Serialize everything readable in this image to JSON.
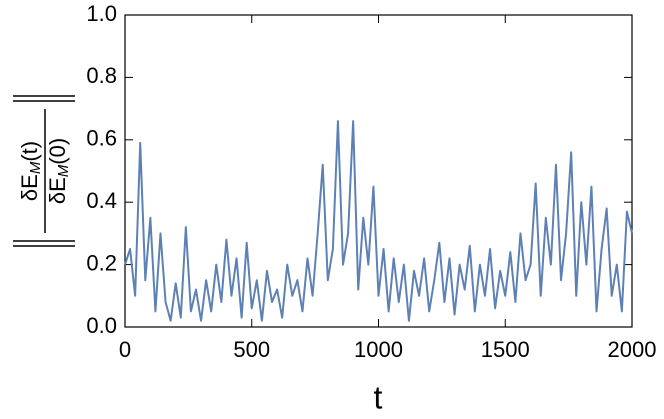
{
  "chart_data": {
    "type": "line",
    "xlabel": "t",
    "ylabel": {
      "numerator": {
        "base": "δE",
        "sub": "M",
        "arg": "(t)"
      },
      "denominator": {
        "base": "δE",
        "sub": "M",
        "arg": "(0)"
      }
    },
    "color": "#5e81b5",
    "x": [
      0,
      20,
      40,
      60,
      80,
      100,
      120,
      140,
      160,
      180,
      200,
      220,
      240,
      260,
      280,
      300,
      320,
      340,
      360,
      380,
      400,
      420,
      440,
      460,
      480,
      500,
      520,
      540,
      560,
      580,
      600,
      620,
      640,
      660,
      680,
      700,
      720,
      740,
      760,
      780,
      800,
      820,
      840,
      860,
      880,
      900,
      920,
      940,
      960,
      980,
      1000,
      1020,
      1040,
      1060,
      1080,
      1100,
      1120,
      1140,
      1160,
      1180,
      1200,
      1220,
      1240,
      1260,
      1280,
      1300,
      1320,
      1340,
      1360,
      1380,
      1400,
      1420,
      1440,
      1460,
      1480,
      1500,
      1520,
      1540,
      1560,
      1580,
      1600,
      1620,
      1640,
      1660,
      1680,
      1700,
      1720,
      1740,
      1760,
      1780,
      1800,
      1820,
      1840,
      1860,
      1880,
      1900,
      1920,
      1940,
      1960,
      1980,
      2000
    ],
    "values": [
      0.2,
      0.25,
      0.1,
      0.59,
      0.15,
      0.35,
      0.05,
      0.3,
      0.08,
      0.02,
      0.14,
      0.03,
      0.32,
      0.05,
      0.12,
      0.02,
      0.15,
      0.05,
      0.2,
      0.08,
      0.28,
      0.1,
      0.22,
      0.03,
      0.27,
      0.06,
      0.15,
      0.02,
      0.18,
      0.08,
      0.12,
      0.03,
      0.2,
      0.1,
      0.15,
      0.05,
      0.22,
      0.1,
      0.3,
      0.52,
      0.15,
      0.25,
      0.66,
      0.2,
      0.3,
      0.66,
      0.12,
      0.35,
      0.2,
      0.45,
      0.1,
      0.25,
      0.05,
      0.22,
      0.08,
      0.2,
      0.02,
      0.18,
      0.1,
      0.22,
      0.05,
      0.15,
      0.27,
      0.08,
      0.22,
      0.04,
      0.2,
      0.12,
      0.26,
      0.05,
      0.2,
      0.1,
      0.25,
      0.06,
      0.18,
      0.1,
      0.24,
      0.08,
      0.3,
      0.15,
      0.2,
      0.46,
      0.1,
      0.35,
      0.2,
      0.52,
      0.15,
      0.3,
      0.56,
      0.1,
      0.4,
      0.2,
      0.45,
      0.05,
      0.25,
      0.38,
      0.1,
      0.2,
      0.05,
      0.37,
      0.3
    ],
    "xlim": [
      0,
      2000
    ],
    "xticks": [
      0,
      500,
      1000,
      1500,
      2000
    ],
    "ylim": [
      0,
      1
    ],
    "yticks": [
      {
        "value": 0,
        "label": "0.0"
      },
      {
        "value": 0.2,
        "label": "0.2"
      },
      {
        "value": 0.4,
        "label": "0.4"
      },
      {
        "value": 0.6,
        "label": "0.6"
      },
      {
        "value": 0.8,
        "label": "0.8"
      },
      {
        "value": 1,
        "label": "1.0"
      }
    ]
  }
}
